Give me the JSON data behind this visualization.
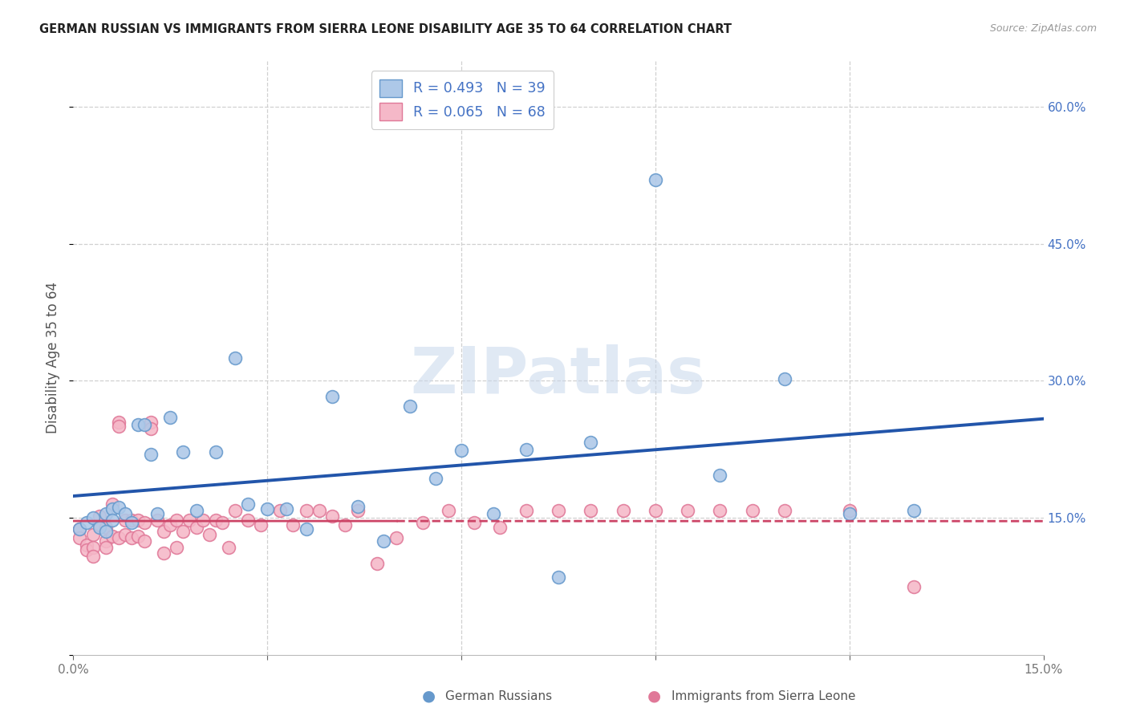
{
  "title": "GERMAN RUSSIAN VS IMMIGRANTS FROM SIERRA LEONE DISABILITY AGE 35 TO 64 CORRELATION CHART",
  "source": "Source: ZipAtlas.com",
  "ylabel": "Disability Age 35 to 64",
  "xlim": [
    0.0,
    0.15
  ],
  "ylim": [
    0.0,
    0.65
  ],
  "background_color": "#ffffff",
  "blue_fill": "#adc8e8",
  "blue_edge": "#6699cc",
  "pink_fill": "#f5b8c8",
  "pink_edge": "#e07898",
  "blue_line_color": "#2255aa",
  "pink_line_color": "#cc4466",
  "grid_color": "#d0d0d0",
  "right_tick_color": "#4472c4",
  "watermark_color": "#c8d8ec",
  "legend_label_blue": "R = 0.493   N = 39",
  "legend_label_pink": "R = 0.065   N = 68",
  "bottom_label_blue": "German Russians",
  "bottom_label_pink": "Immigrants from Sierra Leone",
  "blue_x": [
    0.001,
    0.002,
    0.003,
    0.004,
    0.005,
    0.005,
    0.006,
    0.006,
    0.007,
    0.008,
    0.009,
    0.01,
    0.011,
    0.012,
    0.013,
    0.015,
    0.017,
    0.019,
    0.022,
    0.025,
    0.027,
    0.03,
    0.033,
    0.036,
    0.04,
    0.044,
    0.048,
    0.052,
    0.056,
    0.06,
    0.065,
    0.07,
    0.075,
    0.08,
    0.09,
    0.1,
    0.11,
    0.12,
    0.13
  ],
  "blue_y": [
    0.138,
    0.145,
    0.15,
    0.14,
    0.155,
    0.135,
    0.16,
    0.148,
    0.162,
    0.155,
    0.145,
    0.252,
    0.252,
    0.22,
    0.155,
    0.26,
    0.222,
    0.158,
    0.222,
    0.325,
    0.165,
    0.16,
    0.16,
    0.138,
    0.283,
    0.163,
    0.125,
    0.272,
    0.193,
    0.224,
    0.155,
    0.225,
    0.085,
    0.233,
    0.52,
    0.197,
    0.302,
    0.155,
    0.158
  ],
  "pink_x": [
    0.001,
    0.001,
    0.002,
    0.002,
    0.003,
    0.003,
    0.003,
    0.004,
    0.004,
    0.005,
    0.005,
    0.005,
    0.006,
    0.006,
    0.007,
    0.007,
    0.007,
    0.008,
    0.008,
    0.009,
    0.009,
    0.01,
    0.01,
    0.011,
    0.011,
    0.012,
    0.012,
    0.013,
    0.014,
    0.014,
    0.015,
    0.016,
    0.016,
    0.017,
    0.018,
    0.019,
    0.02,
    0.021,
    0.022,
    0.023,
    0.024,
    0.025,
    0.027,
    0.029,
    0.032,
    0.034,
    0.036,
    0.038,
    0.04,
    0.042,
    0.044,
    0.047,
    0.05,
    0.054,
    0.058,
    0.062,
    0.066,
    0.07,
    0.075,
    0.08,
    0.085,
    0.09,
    0.095,
    0.1,
    0.105,
    0.11,
    0.12,
    0.13
  ],
  "pink_y": [
    0.138,
    0.128,
    0.12,
    0.115,
    0.132,
    0.118,
    0.108,
    0.142,
    0.152,
    0.125,
    0.14,
    0.118,
    0.165,
    0.13,
    0.255,
    0.25,
    0.128,
    0.148,
    0.132,
    0.148,
    0.128,
    0.148,
    0.13,
    0.145,
    0.125,
    0.255,
    0.248,
    0.148,
    0.135,
    0.112,
    0.142,
    0.148,
    0.118,
    0.135,
    0.148,
    0.14,
    0.148,
    0.132,
    0.148,
    0.145,
    0.118,
    0.158,
    0.148,
    0.142,
    0.158,
    0.142,
    0.158,
    0.158,
    0.152,
    0.142,
    0.158,
    0.1,
    0.128,
    0.145,
    0.158,
    0.145,
    0.14,
    0.158,
    0.158,
    0.158,
    0.158,
    0.158,
    0.158,
    0.158,
    0.158,
    0.158,
    0.158,
    0.075
  ]
}
